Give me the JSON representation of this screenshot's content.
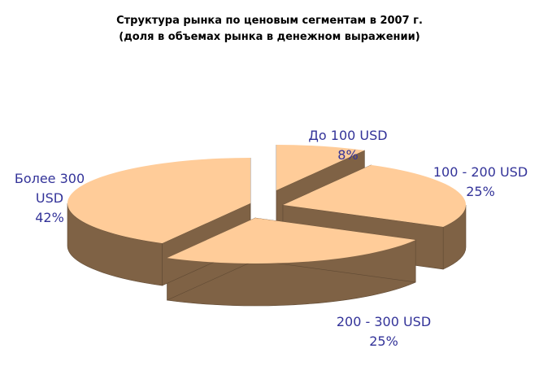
{
  "chart_data": {
    "type": "pie",
    "title": "Структура рынка по ценовым сегментам в 2007 г.",
    "subtitle": "(доля в объемах рынка в денежном выражении)",
    "categories": [
      "До 100 USD",
      "100 - 200 USD",
      "200 - 300 USD",
      "Более 300 USD"
    ],
    "values": [
      8,
      25,
      25,
      42
    ],
    "value_labels": [
      "8%",
      "25%",
      "25%",
      "42%"
    ],
    "style": "3d-exploded",
    "legend": "none",
    "colors": {
      "top": "#FFCC99",
      "side": "#7F6245",
      "edge": "#604A34",
      "labels": "#333399"
    }
  }
}
